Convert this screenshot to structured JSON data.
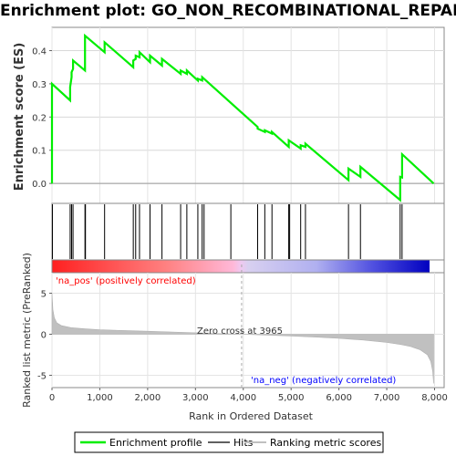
{
  "title": "Enrichment plot: GO_NON_RECOMBINATIONAL_REPAIR",
  "colors": {
    "enrichment_line": "#00ee00",
    "hit_line": "#000000",
    "ranking_fill": "#c0c0c0",
    "pos_label": "#ff0000",
    "neg_label": "#0000ff",
    "zero_cross_line": "#aaaaaa"
  },
  "chart_data": [
    {
      "type": "line",
      "panel": "enrichment",
      "ylabel": "Enrichment score (ES)",
      "xlim": [
        0,
        8200
      ],
      "ylim": [
        -0.06,
        0.47
      ],
      "yticks": [
        "0.0",
        "0.1",
        "0.2",
        "0.3",
        "0.4"
      ],
      "ytick_values": [
        0.0,
        0.1,
        0.2,
        0.3,
        0.4
      ],
      "grid": true,
      "series": [
        {
          "name": "Enrichment profile",
          "x": [
            0,
            0,
            380,
            380,
            410,
            410,
            440,
            440,
            690,
            690,
            1100,
            1100,
            1700,
            1700,
            1750,
            1750,
            1830,
            1830,
            2050,
            2050,
            2300,
            2300,
            2690,
            2690,
            2820,
            2820,
            3050,
            3050,
            3140,
            3140,
            4300,
            4300,
            4450,
            4450,
            4600,
            4600,
            4950,
            4950,
            5200,
            5200,
            5300,
            5300,
            6200,
            6200,
            6450,
            6450,
            7280,
            7280,
            7320,
            7320,
            7980
          ],
          "y": [
            0.0,
            0.3,
            0.25,
            0.29,
            0.32,
            0.335,
            0.345,
            0.37,
            0.34,
            0.445,
            0.395,
            0.425,
            0.35,
            0.37,
            0.375,
            0.385,
            0.38,
            0.395,
            0.365,
            0.385,
            0.355,
            0.375,
            0.33,
            0.34,
            0.33,
            0.34,
            0.31,
            0.315,
            0.31,
            0.32,
            0.17,
            0.165,
            0.155,
            0.16,
            0.15,
            0.155,
            0.11,
            0.13,
            0.105,
            0.115,
            0.11,
            0.12,
            0.01,
            0.045,
            0.02,
            0.05,
            -0.05,
            0.02,
            0.018,
            0.088,
            0.0
          ]
        }
      ]
    },
    {
      "type": "scatter",
      "panel": "hits",
      "name": "Hits",
      "x": [
        10,
        380,
        410,
        440,
        690,
        700,
        1100,
        1700,
        1750,
        1830,
        2050,
        2300,
        2690,
        2820,
        3050,
        3140,
        3180,
        3740,
        4300,
        4450,
        4600,
        4950,
        4970,
        5200,
        5300,
        6200,
        6450,
        7280,
        7320
      ]
    },
    {
      "type": "area",
      "panel": "ranking",
      "name": "Ranking metric scores",
      "ylabel": "Ranked list metric (PreRanked)",
      "xlabel": "Rank in Ordered Dataset",
      "xlim": [
        0,
        8200
      ],
      "ylim": [
        -6.5,
        7.5
      ],
      "xticks": [
        "0",
        "1,000",
        "2,000",
        "3,000",
        "4,000",
        "5,000",
        "6,000",
        "7,000",
        "8,000"
      ],
      "xtick_values": [
        0,
        1000,
        2000,
        3000,
        4000,
        5000,
        6000,
        7000,
        8000
      ],
      "yticks": [
        "-5",
        "0",
        "5"
      ],
      "ytick_values": [
        -5,
        0,
        5
      ],
      "x": [
        0,
        20,
        50,
        100,
        200,
        400,
        700,
        1000,
        1500,
        2000,
        2500,
        3000,
        3500,
        3965,
        4500,
        5000,
        5500,
        6000,
        6500,
        7000,
        7300,
        7500,
        7700,
        7850,
        7920,
        7960,
        7980
      ],
      "y": [
        5.0,
        3.0,
        2.0,
        1.4,
        1.05,
        0.8,
        0.65,
        0.55,
        0.45,
        0.37,
        0.28,
        0.18,
        0.08,
        0.0,
        -0.1,
        -0.22,
        -0.35,
        -0.5,
        -0.7,
        -1.0,
        -1.25,
        -1.5,
        -1.9,
        -2.5,
        -3.3,
        -4.5,
        -6.0
      ]
    }
  ],
  "annotations": {
    "pos_label": "'na_pos' (positively correlated)",
    "neg_label": "'na_neg' (negatively correlated)",
    "zero_cross": "Zero cross at 3965",
    "zero_cross_value": 3965
  },
  "legend": {
    "items": [
      {
        "label": "Enrichment profile",
        "color": "#00ee00"
      },
      {
        "label": "Hits",
        "color": "#000000"
      },
      {
        "label": "Ranking metric scores",
        "color": "#c0c0c0"
      }
    ]
  }
}
